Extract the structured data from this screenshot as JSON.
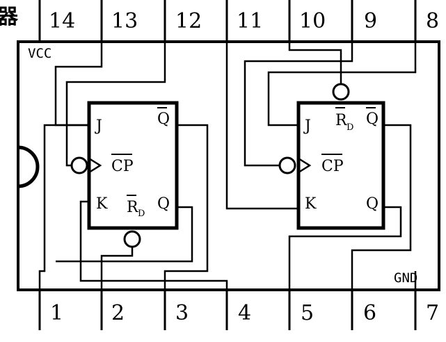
{
  "title_fragment": "器",
  "top_pins": [
    "14",
    "13",
    "12",
    "11",
    "10",
    "9",
    "8"
  ],
  "bottom_pins": [
    "1",
    "2",
    "3",
    "4",
    "5",
    "6",
    "7"
  ],
  "power": {
    "vcc": "VCC",
    "gnd": "GND"
  },
  "ff_left": {
    "j": "J",
    "k": "K",
    "cp": "CP",
    "q": "Q",
    "qbar": "Q",
    "rd": "R",
    "rd_sub": "D"
  },
  "ff_right": {
    "j": "J",
    "k": "K",
    "cp": "CP",
    "q": "Q",
    "qbar": "Q",
    "rd": "R",
    "rd_sub": "D"
  },
  "colors": {
    "ink": "#000000",
    "paper": "#ffffff"
  }
}
